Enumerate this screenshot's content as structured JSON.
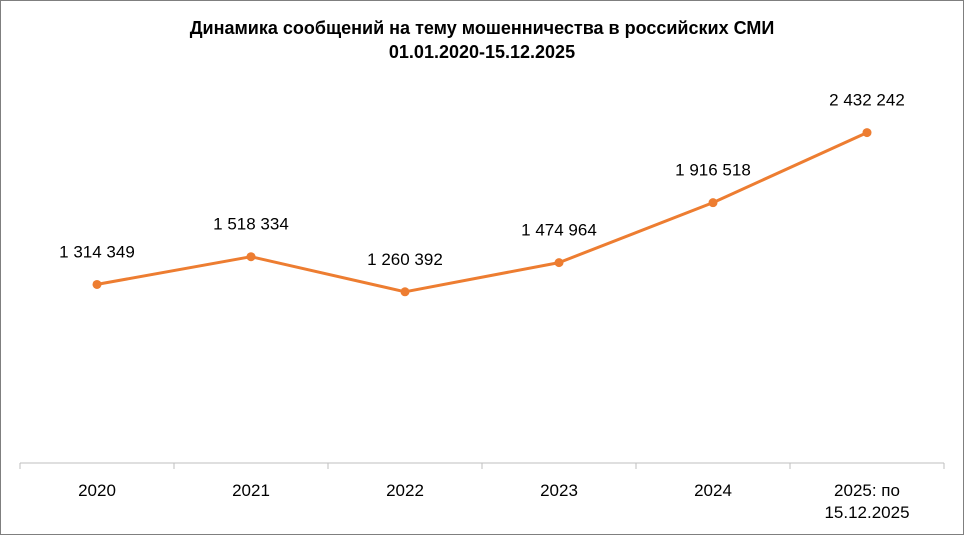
{
  "chart_data": {
    "type": "line",
    "title": "Динамика сообщений на тему мошенничества в российских СМИ",
    "subtitle": "01.01.2020-15.12.2025",
    "categories": [
      "2020",
      "2021",
      "2022",
      "2023",
      "2024",
      "2025: по 15.12.2025"
    ],
    "values": [
      1314349,
      1518334,
      1260392,
      1474964,
      1916518,
      2432242
    ],
    "data_labels": [
      "1 314 349",
      "1 518 334",
      "1 260 392",
      "1 474 964",
      "1 916 518",
      "2 432 242"
    ],
    "ylim": [
      0,
      2650000
    ],
    "grid": false,
    "legend": "none",
    "color": "#ED7D31"
  }
}
